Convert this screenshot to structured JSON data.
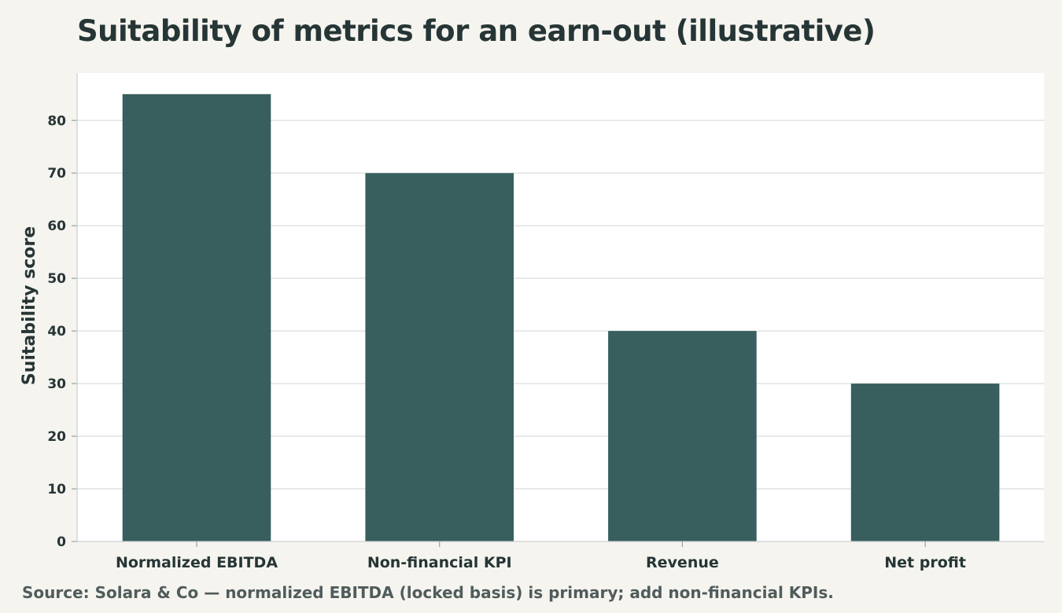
{
  "colors": {
    "background": "#f5f4ef",
    "plot_background": "#ffffff",
    "bar": "#385e5e",
    "grid": "#dfe4e4",
    "text": "#263535"
  },
  "source_note": "Source: Solara & Co — normalized EBITDA (locked basis) is primary; add non-financial KPIs.",
  "chart_data": {
    "type": "bar",
    "title": "Suitability of metrics for an earn-out (illustrative)",
    "xlabel": "",
    "ylabel": "Suitability score",
    "categories": [
      "Normalized EBITDA",
      "Non-financial KPI",
      "Revenue",
      "Net profit"
    ],
    "values": [
      85,
      70,
      40,
      30
    ],
    "ylim": [
      0,
      89
    ],
    "yticks": [
      0,
      10,
      20,
      30,
      40,
      50,
      60,
      70,
      80
    ],
    "grid": true,
    "legend": "none"
  }
}
